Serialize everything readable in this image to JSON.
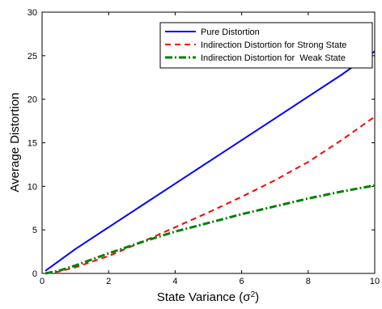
{
  "chart_data": {
    "type": "line",
    "title": "",
    "xlabel": "State Variance (σ²)",
    "ylabel": "Average Distortion",
    "xlim": [
      0,
      10
    ],
    "ylim": [
      0,
      30
    ],
    "x_ticks": [
      0,
      2,
      4,
      6,
      8,
      10
    ],
    "y_ticks": [
      0,
      5,
      10,
      15,
      20,
      25,
      30
    ],
    "grid": false,
    "legend_position": "top-right",
    "series": [
      {
        "name": "Pure Distortion",
        "color": "#0000ff",
        "style": "solid",
        "x": [
          0.1,
          1,
          2,
          3,
          4,
          5,
          6,
          7,
          8,
          9,
          10
        ],
        "y": [
          0.3,
          2.8,
          5.3,
          7.8,
          10.3,
          12.8,
          15.3,
          17.8,
          20.3,
          22.8,
          25.5
        ]
      },
      {
        "name": "Indirection Distortion for Strong State",
        "color": "#ff0000",
        "style": "dashed",
        "x": [
          0.1,
          0.5,
          1,
          2,
          3,
          4,
          5,
          6,
          7,
          8,
          9,
          10
        ],
        "y": [
          0.0,
          0.2,
          0.7,
          2.0,
          3.6,
          5.3,
          7.0,
          8.8,
          10.7,
          12.8,
          15.3,
          18.0
        ]
      },
      {
        "name": "Indirection Distortion for  Weak State",
        "color": "#008000",
        "style": "dashdot",
        "x": [
          0.1,
          0.5,
          1,
          2,
          3,
          4,
          5,
          6,
          7,
          8,
          9,
          10
        ],
        "y": [
          0.0,
          0.3,
          0.9,
          2.3,
          3.6,
          4.8,
          5.8,
          6.8,
          7.7,
          8.6,
          9.4,
          10.1
        ]
      }
    ]
  }
}
